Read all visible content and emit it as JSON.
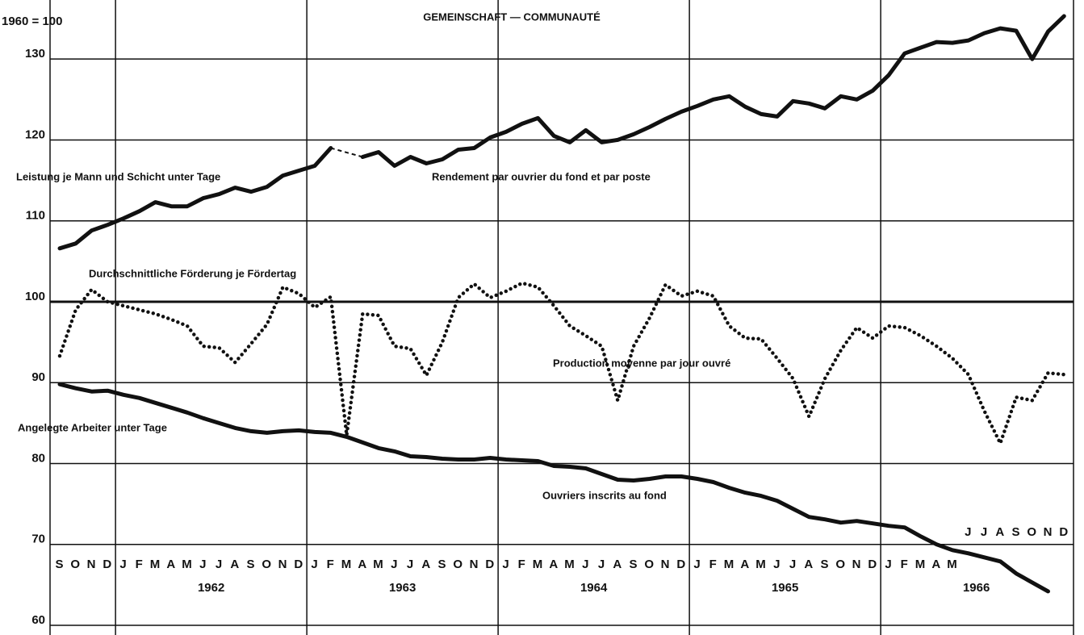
{
  "chart_data": {
    "type": "line",
    "title": "GEMEINSCHAFT — COMMUNAUTÉ",
    "ylabel": "1960 = 100",
    "categories": [
      "S",
      "O",
      "N",
      "D",
      "J",
      "F",
      "M",
      "A",
      "M",
      "J",
      "J",
      "A",
      "S",
      "O",
      "N",
      "D",
      "J",
      "F",
      "M",
      "A",
      "M",
      "J",
      "J",
      "A",
      "S",
      "O",
      "N",
      "D",
      "J",
      "F",
      "M",
      "A",
      "M",
      "J",
      "J",
      "A",
      "S",
      "O",
      "N",
      "D",
      "J",
      "F",
      "M",
      "A",
      "M",
      "J",
      "J",
      "A",
      "S",
      "O",
      "N",
      "D",
      "J",
      "F",
      "M",
      "A",
      "M",
      "J",
      "J",
      "A",
      "S",
      "O",
      "N",
      "D"
    ],
    "years": [
      "1962",
      "1963",
      "1964",
      "1965",
      "1966"
    ],
    "ylim": [
      60,
      137
    ],
    "yticks": [
      60,
      70,
      80,
      90,
      100,
      110,
      120,
      130
    ],
    "reference_line": 100,
    "grid": true,
    "series": [
      {
        "labels": [
          "Leistung je Mann und Schicht unter Tage",
          "Rendement par ouvrier du fond et par poste"
        ],
        "color": "#111",
        "style": "solid",
        "values": [
          106.6,
          107.2,
          108.8,
          109.5,
          110.3,
          111.2,
          112.3,
          111.8,
          111.8,
          112.8,
          113.3,
          114.1,
          113.6,
          114.2,
          115.6,
          116.2,
          116.8,
          119.0,
          null,
          117.9,
          118.5,
          116.8,
          117.9,
          117.1,
          117.6,
          118.8,
          119.0,
          120.3,
          121.0,
          122.0,
          122.7,
          120.5,
          119.7,
          121.2,
          119.7,
          120.0,
          120.7,
          121.6,
          122.6,
          123.5,
          124.2,
          125.0,
          125.4,
          124.1,
          123.2,
          122.9,
          124.8,
          124.5,
          123.9,
          125.4,
          125.0,
          126.1,
          128.0,
          130.7,
          131.4,
          132.1,
          132.0,
          132.3,
          133.2,
          133.8,
          133.5,
          130.0,
          133.4,
          135.3
        ]
      },
      {
        "labels": [
          "Durchschnittliche Förderung je Fördertag",
          "Production moyenne par jour ouvré"
        ],
        "color": "#111",
        "style": "dotted",
        "values": [
          93.3,
          99.0,
          101.5,
          100.0,
          99.5,
          99.0,
          98.5,
          97.8,
          97.0,
          94.5,
          94.3,
          92.5,
          94.8,
          97.2,
          101.8,
          101.0,
          99.3,
          100.6,
          83.5,
          98.5,
          98.3,
          94.5,
          94.2,
          90.9,
          95.0,
          100.5,
          102.2,
          100.5,
          101.3,
          102.3,
          101.8,
          99.5,
          97.0,
          95.8,
          94.5,
          87.8,
          94.5,
          98.0,
          102.1,
          100.7,
          101.3,
          100.7,
          97.0,
          95.5,
          95.4,
          93.0,
          90.5,
          85.8,
          90.5,
          94.0,
          96.8,
          95.5,
          97.0,
          96.8,
          95.8,
          94.5,
          93.0,
          91.0,
          86.5,
          82.5,
          88.2,
          87.8,
          91.2,
          91.0
        ]
      },
      {
        "labels": [
          "Angelegte Arbeiter unter Tage",
          "Ouvriers inscrits au fond"
        ],
        "color": "#111",
        "style": "solid",
        "values": [
          89.8,
          89.3,
          88.9,
          89.0,
          88.5,
          88.1,
          87.5,
          86.9,
          86.3,
          85.6,
          85.0,
          84.4,
          84.0,
          83.8,
          84.0,
          84.1,
          83.9,
          83.8,
          83.3,
          82.6,
          81.9,
          81.5,
          80.9,
          80.8,
          80.6,
          80.5,
          80.5,
          80.7,
          80.5,
          80.4,
          80.3,
          79.7,
          79.6,
          79.4,
          78.7,
          78.0,
          77.9,
          78.1,
          78.4,
          78.4,
          78.1,
          77.7,
          77.0,
          76.4,
          76.0,
          75.4,
          74.4,
          73.4,
          73.1,
          72.7,
          72.9,
          72.6,
          72.3,
          72.1,
          71.0,
          70.0,
          69.3,
          68.9,
          68.4,
          67.9,
          66.4,
          65.3,
          64.2,
          null
        ]
      }
    ]
  }
}
